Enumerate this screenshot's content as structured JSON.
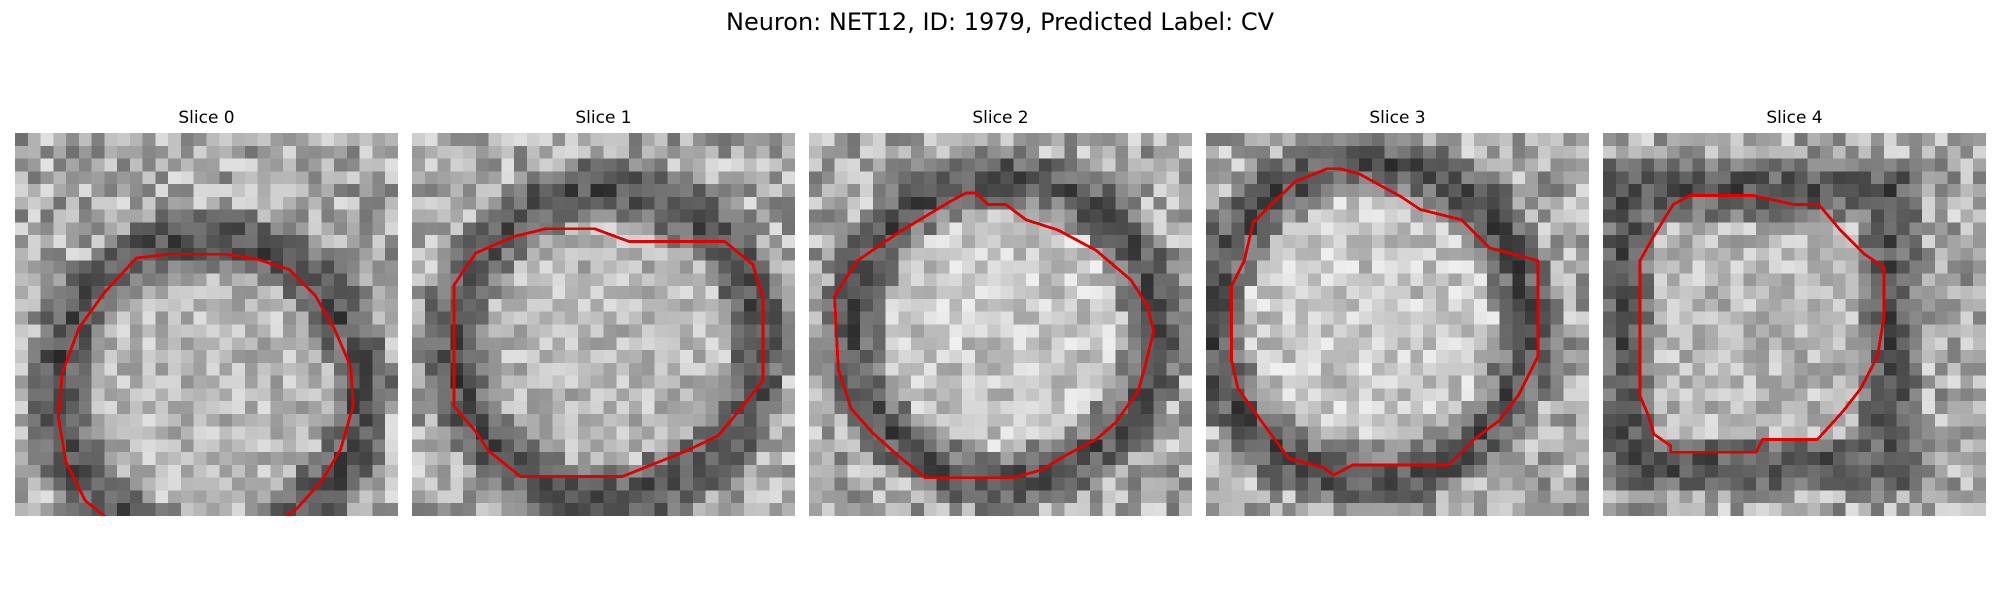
{
  "figure": {
    "suptitle": "Neuron: NET12, ID: 1979, Predicted Label: CV"
  },
  "panels": [
    {
      "title": "Slice 0",
      "seed": 11,
      "shape": "ring"
    },
    {
      "title": "Slice 1",
      "seed": 23,
      "shape": "ring"
    },
    {
      "title": "Slice 2",
      "seed": 37,
      "shape": "bright"
    },
    {
      "title": "Slice 3",
      "seed": 41,
      "shape": "bright"
    },
    {
      "title": "Slice 4",
      "seed": 59,
      "shape": "square"
    }
  ],
  "colors": {
    "contour": "#e00000"
  }
}
